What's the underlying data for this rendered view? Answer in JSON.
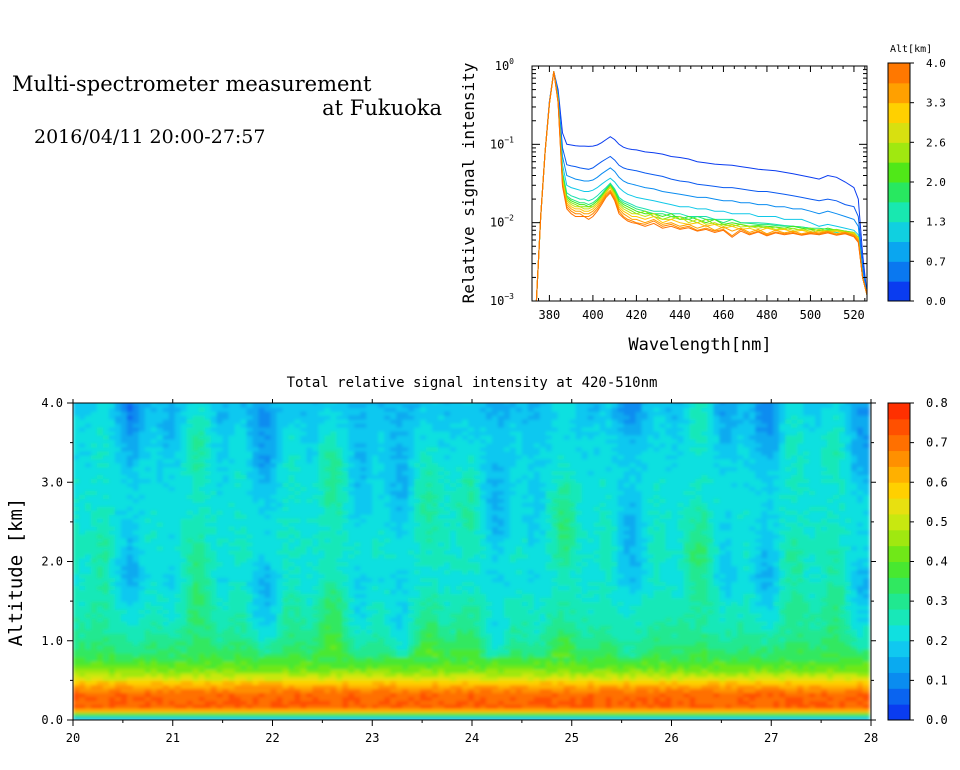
{
  "header": {
    "title_line1": "Multi-spectrometer measurement",
    "title_line2": "at Fukuoka",
    "date_range": "2016/04/11 20:00-27:57"
  },
  "chart_data": [
    {
      "type": "line",
      "xlabel": "Wavelength[nm]",
      "ylabel": "Relative signal intensity",
      "xlim": [
        372,
        526
      ],
      "ylim": [
        0.001,
        1
      ],
      "yscale": "log",
      "x_ticks": [
        380,
        400,
        420,
        440,
        460,
        480,
        500,
        520
      ],
      "y_ticks": [
        {
          "value": 0.001,
          "base": "10",
          "exp": "−3"
        },
        {
          "value": 0.01,
          "base": "10",
          "exp": "−2"
        },
        {
          "value": 0.1,
          "base": "10",
          "exp": "−1"
        },
        {
          "value": 1,
          "base": "10",
          "exp": "0"
        }
      ],
      "colorbar": {
        "label": "Alt[km]",
        "range": [
          0.0,
          4.0
        ],
        "tick_labels": [
          "0.0",
          "0.7",
          "1.3",
          "2.0",
          "2.6",
          "3.3",
          "4.0"
        ],
        "tick_values": [
          0.0,
          0.667,
          1.333,
          2.0,
          2.667,
          3.333,
          4.0
        ],
        "colors": [
          "#0a3cf0",
          "#0a78f0",
          "#0aa6f0",
          "#10d0e0",
          "#18e8b0",
          "#28e860",
          "#50e818",
          "#a0e810",
          "#d8e010",
          "#ffd000",
          "#ffa000",
          "#ff7800"
        ]
      },
      "x": [
        374,
        376,
        378,
        380,
        382,
        384,
        386,
        388,
        390,
        392,
        394,
        396,
        398,
        400,
        402,
        404,
        406,
        408,
        410,
        412,
        414,
        416,
        418,
        420,
        424,
        428,
        432,
        436,
        440,
        444,
        448,
        452,
        456,
        460,
        464,
        468,
        472,
        476,
        480,
        484,
        488,
        492,
        496,
        500,
        504,
        508,
        512,
        516,
        520,
        522,
        524,
        526
      ],
      "series": [
        {
          "altitude": 0.0,
          "color": "#0a3cf0",
          "values": [
            0.001,
            0.012,
            0.08,
            0.35,
            0.85,
            0.5,
            0.14,
            0.1,
            0.098,
            0.096,
            0.095,
            0.095,
            0.094,
            0.095,
            0.098,
            0.105,
            0.115,
            0.125,
            0.115,
            0.1,
            0.092,
            0.088,
            0.086,
            0.085,
            0.08,
            0.078,
            0.075,
            0.07,
            0.068,
            0.065,
            0.06,
            0.058,
            0.056,
            0.055,
            0.054,
            0.052,
            0.05,
            0.048,
            0.047,
            0.046,
            0.044,
            0.042,
            0.04,
            0.038,
            0.036,
            0.04,
            0.038,
            0.033,
            0.028,
            0.02,
            0.004,
            0.0012
          ]
        },
        {
          "altitude": 0.33,
          "color": "#0a5af0",
          "values": [
            0.001,
            0.012,
            0.08,
            0.35,
            0.85,
            0.45,
            0.09,
            0.055,
            0.053,
            0.052,
            0.05,
            0.049,
            0.048,
            0.05,
            0.055,
            0.06,
            0.065,
            0.07,
            0.063,
            0.054,
            0.05,
            0.048,
            0.047,
            0.046,
            0.043,
            0.041,
            0.039,
            0.036,
            0.034,
            0.033,
            0.031,
            0.03,
            0.029,
            0.028,
            0.028,
            0.027,
            0.026,
            0.025,
            0.025,
            0.024,
            0.023,
            0.022,
            0.021,
            0.02,
            0.019,
            0.02,
            0.019,
            0.017,
            0.016,
            0.012,
            0.003,
            0.0012
          ]
        },
        {
          "altitude": 0.67,
          "color": "#0a8cf0",
          "values": [
            0.001,
            0.012,
            0.08,
            0.34,
            0.85,
            0.42,
            0.07,
            0.04,
            0.038,
            0.036,
            0.035,
            0.034,
            0.034,
            0.035,
            0.038,
            0.042,
            0.046,
            0.05,
            0.045,
            0.038,
            0.034,
            0.032,
            0.031,
            0.03,
            0.028,
            0.027,
            0.025,
            0.024,
            0.023,
            0.022,
            0.021,
            0.021,
            0.02,
            0.019,
            0.019,
            0.018,
            0.018,
            0.017,
            0.017,
            0.016,
            0.016,
            0.015,
            0.015,
            0.014,
            0.013,
            0.014,
            0.013,
            0.012,
            0.011,
            0.009,
            0.0025,
            0.0012
          ]
        },
        {
          "altitude": 1.0,
          "color": "#10c8e8",
          "values": [
            0.001,
            0.012,
            0.08,
            0.33,
            0.85,
            0.4,
            0.055,
            0.03,
            0.028,
            0.027,
            0.026,
            0.025,
            0.025,
            0.026,
            0.028,
            0.031,
            0.034,
            0.037,
            0.033,
            0.028,
            0.025,
            0.023,
            0.022,
            0.021,
            0.02,
            0.019,
            0.018,
            0.017,
            0.016,
            0.016,
            0.015,
            0.015,
            0.014,
            0.014,
            0.013,
            0.013,
            0.013,
            0.012,
            0.012,
            0.012,
            0.011,
            0.011,
            0.011,
            0.01,
            0.009,
            0.0095,
            0.009,
            0.0085,
            0.008,
            0.007,
            0.002,
            0.0012
          ]
        },
        {
          "altitude": 1.33,
          "color": "#18e0b0",
          "values": [
            0.001,
            0.012,
            0.08,
            0.33,
            0.85,
            0.38,
            0.045,
            0.024,
            0.022,
            0.021,
            0.02,
            0.02,
            0.019,
            0.02,
            0.022,
            0.025,
            0.028,
            0.032,
            0.027,
            0.021,
            0.019,
            0.018,
            0.017,
            0.016,
            0.015,
            0.014,
            0.014,
            0.013,
            0.013,
            0.012,
            0.012,
            0.012,
            0.011,
            0.011,
            0.011,
            0.01,
            0.01,
            0.01,
            0.0098,
            0.0095,
            0.0092,
            0.009,
            0.0088,
            0.0085,
            0.007,
            0.008,
            0.0075,
            0.0072,
            0.007,
            0.006,
            0.002,
            0.0012
          ]
        },
        {
          "altitude": 1.67,
          "color": "#28e870",
          "values": [
            0.001,
            0.012,
            0.08,
            0.33,
            0.85,
            0.37,
            0.042,
            0.022,
            0.02,
            0.019,
            0.018,
            0.018,
            0.017,
            0.018,
            0.02,
            0.023,
            0.027,
            0.031,
            0.026,
            0.02,
            0.018,
            0.017,
            0.016,
            0.015,
            0.014,
            0.013,
            0.013,
            0.012,
            0.012,
            0.011,
            0.012,
            0.011,
            0.011,
            0.01,
            0.011,
            0.01,
            0.0098,
            0.0095,
            0.0095,
            0.0092,
            0.009,
            0.009,
            0.0088,
            0.0085,
            0.0085,
            0.0082,
            0.008,
            0.0078,
            0.0075,
            0.0065,
            0.002,
            0.0012
          ]
        },
        {
          "altitude": 2.0,
          "color": "#40e818",
          "values": [
            0.001,
            0.012,
            0.08,
            0.33,
            0.85,
            0.37,
            0.04,
            0.021,
            0.019,
            0.018,
            0.017,
            0.017,
            0.016,
            0.017,
            0.019,
            0.022,
            0.026,
            0.03,
            0.025,
            0.019,
            0.017,
            0.016,
            0.015,
            0.014,
            0.013,
            0.013,
            0.012,
            0.013,
            0.011,
            0.012,
            0.011,
            0.01,
            0.011,
            0.0095,
            0.01,
            0.0095,
            0.009,
            0.0092,
            0.009,
            0.0088,
            0.0085,
            0.009,
            0.0085,
            0.0082,
            0.008,
            0.0085,
            0.008,
            0.0078,
            0.0075,
            0.0065,
            0.002,
            0.0012
          ]
        },
        {
          "altitude": 2.33,
          "color": "#80e810",
          "values": [
            0.001,
            0.012,
            0.08,
            0.33,
            0.85,
            0.36,
            0.038,
            0.02,
            0.018,
            0.017,
            0.016,
            0.016,
            0.016,
            0.016,
            0.018,
            0.021,
            0.025,
            0.029,
            0.024,
            0.018,
            0.016,
            0.015,
            0.014,
            0.013,
            0.014,
            0.012,
            0.011,
            0.012,
            0.011,
            0.011,
            0.01,
            0.011,
            0.0095,
            0.0095,
            0.009,
            0.0095,
            0.0088,
            0.009,
            0.0085,
            0.0088,
            0.0082,
            0.0085,
            0.008,
            0.0085,
            0.0078,
            0.008,
            0.0082,
            0.0078,
            0.0072,
            0.0065,
            0.002,
            0.0012
          ]
        },
        {
          "altitude": 2.67,
          "color": "#c8e010",
          "values": [
            0.001,
            0.012,
            0.08,
            0.33,
            0.85,
            0.36,
            0.036,
            0.019,
            0.017,
            0.016,
            0.016,
            0.015,
            0.015,
            0.016,
            0.018,
            0.021,
            0.025,
            0.029,
            0.023,
            0.017,
            0.015,
            0.014,
            0.013,
            0.013,
            0.012,
            0.013,
            0.011,
            0.011,
            0.012,
            0.01,
            0.011,
            0.0095,
            0.01,
            0.009,
            0.0095,
            0.0088,
            0.009,
            0.0085,
            0.0088,
            0.0082,
            0.0085,
            0.008,
            0.0082,
            0.0078,
            0.0082,
            0.0078,
            0.008,
            0.0076,
            0.0075,
            0.0065,
            0.002,
            0.0012
          ]
        },
        {
          "altitude": 3.0,
          "color": "#ffc800",
          "values": [
            0.001,
            0.012,
            0.08,
            0.33,
            0.85,
            0.35,
            0.034,
            0.018,
            0.016,
            0.015,
            0.015,
            0.014,
            0.014,
            0.015,
            0.017,
            0.02,
            0.024,
            0.028,
            0.022,
            0.016,
            0.014,
            0.013,
            0.012,
            0.012,
            0.011,
            0.012,
            0.01,
            0.011,
            0.01,
            0.0095,
            0.01,
            0.009,
            0.0095,
            0.0085,
            0.009,
            0.0082,
            0.0085,
            0.0078,
            0.0085,
            0.008,
            0.0082,
            0.0076,
            0.008,
            0.0075,
            0.0078,
            0.0076,
            0.0078,
            0.0075,
            0.0072,
            0.0062,
            0.002,
            0.0012
          ]
        },
        {
          "altitude": 3.33,
          "color": "#ffa000",
          "values": [
            0.001,
            0.012,
            0.08,
            0.33,
            0.85,
            0.35,
            0.032,
            0.017,
            0.015,
            0.014,
            0.014,
            0.013,
            0.013,
            0.014,
            0.016,
            0.019,
            0.023,
            0.026,
            0.021,
            0.015,
            0.013,
            0.012,
            0.011,
            0.011,
            0.01,
            0.011,
            0.0095,
            0.01,
            0.009,
            0.0095,
            0.0085,
            0.0092,
            0.008,
            0.0088,
            0.0078,
            0.0085,
            0.0075,
            0.0082,
            0.0072,
            0.008,
            0.0074,
            0.0078,
            0.0072,
            0.0076,
            0.0074,
            0.0078,
            0.0072,
            0.0076,
            0.007,
            0.006,
            0.002,
            0.0012
          ]
        },
        {
          "altitude": 3.67,
          "color": "#ff8800",
          "values": [
            0.001,
            0.012,
            0.08,
            0.33,
            0.85,
            0.34,
            0.03,
            0.016,
            0.014,
            0.013,
            0.013,
            0.012,
            0.012,
            0.013,
            0.015,
            0.018,
            0.022,
            0.025,
            0.02,
            0.014,
            0.012,
            0.011,
            0.0105,
            0.01,
            0.0095,
            0.0105,
            0.009,
            0.0095,
            0.0085,
            0.009,
            0.008,
            0.0085,
            0.0078,
            0.0082,
            0.0068,
            0.0082,
            0.0072,
            0.0078,
            0.007,
            0.0076,
            0.0072,
            0.0075,
            0.007,
            0.0074,
            0.0072,
            0.0076,
            0.007,
            0.0074,
            0.0068,
            0.0058,
            0.002,
            0.0012
          ]
        },
        {
          "altitude": 4.0,
          "color": "#ff7000",
          "values": [
            0.001,
            0.012,
            0.08,
            0.33,
            0.85,
            0.34,
            0.029,
            0.015,
            0.013,
            0.012,
            0.012,
            0.012,
            0.011,
            0.012,
            0.014,
            0.017,
            0.021,
            0.024,
            0.019,
            0.013,
            0.0115,
            0.0105,
            0.01,
            0.0098,
            0.009,
            0.0098,
            0.0085,
            0.009,
            0.0082,
            0.0086,
            0.0078,
            0.0082,
            0.0075,
            0.008,
            0.0065,
            0.0078,
            0.007,
            0.0076,
            0.0068,
            0.0074,
            0.007,
            0.0073,
            0.0069,
            0.0072,
            0.007,
            0.0074,
            0.0069,
            0.0072,
            0.0066,
            0.0056,
            0.002,
            0.0012
          ]
        }
      ]
    },
    {
      "type": "heatmap",
      "title": "Total relative signal intensity at 420-510nm",
      "ylabel": "Altitude [km]",
      "xlim": [
        20,
        28
      ],
      "ylim": [
        0.0,
        4.0
      ],
      "data_x_range": [
        20,
        27.95
      ],
      "x_ticks": [
        "20",
        "21",
        "22",
        "23",
        "24",
        "25",
        "26",
        "27",
        "28"
      ],
      "y_tick_labels": [
        "0.0",
        "1.0",
        "2.0",
        "3.0",
        "4.0"
      ],
      "y_tick_values": [
        0,
        1,
        2,
        3,
        4
      ],
      "colorbar": {
        "range": [
          0.0,
          0.8
        ],
        "tick_labels": [
          "0.0",
          "0.1",
          "0.2",
          "0.3",
          "0.4",
          "0.5",
          "0.6",
          "0.7",
          "0.8"
        ],
        "tick_values": [
          0.0,
          0.1,
          0.2,
          0.3,
          0.4,
          0.5,
          0.6,
          0.7,
          0.8
        ],
        "colors": [
          "#0a3cf0",
          "#0a64f0",
          "#0a8cf0",
          "#0aaaf0",
          "#10c8f0",
          "#10e0e0",
          "#18e8b8",
          "#20e890",
          "#30e860",
          "#48e830",
          "#70e818",
          "#a0e810",
          "#c8e810",
          "#e8e010",
          "#ffd000",
          "#ffb000",
          "#ff9000",
          "#ff7000",
          "#ff5000",
          "#ff3000"
        ]
      },
      "profile": {
        "altitude_km": [
          0.0,
          0.15,
          0.25,
          0.35,
          0.45,
          0.55,
          0.65,
          0.8,
          1.0,
          1.2,
          1.5,
          1.8,
          2.1,
          2.5,
          3.0,
          3.5,
          3.95
        ],
        "value": [
          0.05,
          0.72,
          0.72,
          0.7,
          0.62,
          0.5,
          0.42,
          0.35,
          0.3,
          0.27,
          0.25,
          0.22,
          0.24,
          0.23,
          0.22,
          0.2,
          0.17
        ]
      }
    }
  ]
}
